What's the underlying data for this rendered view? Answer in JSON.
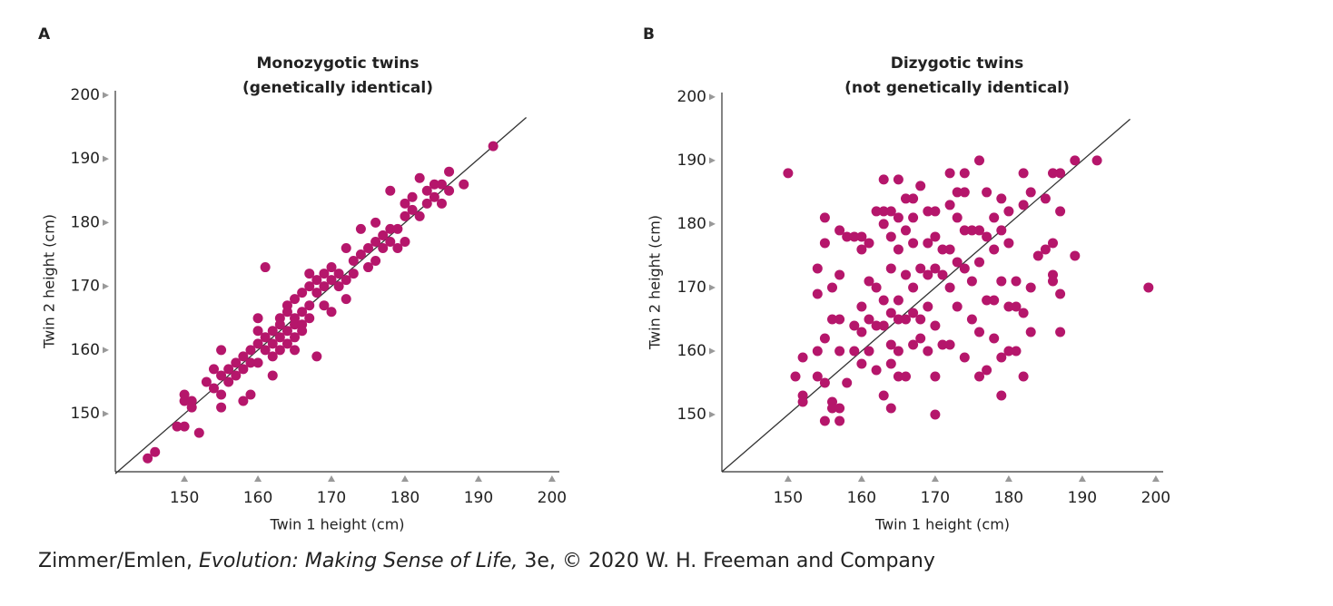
{
  "chart_data": [
    {
      "type": "scatter",
      "panel_label": "A",
      "title": "Monozygotic twins",
      "subtitle": "(genetically identical)",
      "xlabel": "Twin 1 height (cm)",
      "ylabel": "Twin 2 height (cm)",
      "color": "#b5166b",
      "xlim": [
        140.6,
        201
      ],
      "ylim": [
        140.9,
        200.7
      ],
      "xticks": [
        150,
        160,
        170,
        180,
        190,
        200
      ],
      "yticks": [
        150,
        160,
        170,
        180,
        190,
        200
      ],
      "reference_line": {
        "x": [
          140.6,
          196.5
        ],
        "y": [
          140.6,
          196.5
        ]
      },
      "x": [
        145,
        146,
        149,
        150,
        150,
        150,
        151,
        151,
        152,
        153,
        154,
        154,
        155,
        155,
        155,
        155,
        156,
        156,
        157,
        157,
        158,
        158,
        158,
        159,
        159,
        159,
        160,
        160,
        160,
        160,
        161,
        161,
        161,
        162,
        162,
        162,
        162,
        163,
        163,
        163,
        163,
        164,
        164,
        164,
        164,
        165,
        165,
        165,
        165,
        165,
        166,
        166,
        166,
        166,
        167,
        167,
        167,
        167,
        168,
        168,
        168,
        169,
        169,
        169,
        170,
        170,
        170,
        171,
        171,
        172,
        172,
        172,
        173,
        173,
        174,
        174,
        175,
        175,
        176,
        176,
        176,
        177,
        177,
        178,
        178,
        178,
        179,
        179,
        180,
        180,
        180,
        181,
        181,
        182,
        182,
        183,
        183,
        184,
        184,
        185,
        185,
        186,
        186,
        188,
        192
      ],
      "values": [
        143,
        144,
        148,
        148,
        153,
        152,
        152,
        151,
        147,
        155,
        157,
        154,
        156,
        153,
        151,
        160,
        157,
        155,
        156,
        158,
        157,
        159,
        152,
        158,
        160,
        153,
        161,
        163,
        165,
        158,
        160,
        173,
        162,
        161,
        163,
        159,
        156,
        162,
        164,
        165,
        160,
        163,
        166,
        161,
        167,
        164,
        165,
        162,
        168,
        160,
        166,
        164,
        169,
        163,
        167,
        165,
        170,
        172,
        169,
        159,
        171,
        170,
        172,
        167,
        171,
        173,
        166,
        172,
        170,
        171,
        176,
        168,
        174,
        172,
        175,
        179,
        176,
        173,
        177,
        174,
        180,
        178,
        176,
        179,
        185,
        177,
        179,
        176,
        181,
        177,
        183,
        182,
        184,
        181,
        187,
        183,
        185,
        184,
        186,
        186,
        183,
        185,
        188,
        186,
        192
      ]
    },
    {
      "type": "scatter",
      "panel_label": "B",
      "title": "Dizygotic twins",
      "subtitle": "(not genetically identical)",
      "xlabel": "Twin 1 height (cm)",
      "ylabel": "Twin 2 height (cm)",
      "color": "#b5166b",
      "xlim": [
        141,
        201
      ],
      "ylim": [
        141,
        200.7
      ],
      "xticks": [
        150,
        160,
        170,
        180,
        190,
        200
      ],
      "yticks": [
        150,
        160,
        170,
        180,
        190,
        200
      ],
      "reference_line": {
        "x": [
          141,
          196.5
        ],
        "y": [
          141,
          196.5
        ]
      },
      "x": [
        150,
        151,
        152,
        152,
        152,
        154,
        154,
        154,
        154,
        155,
        155,
        155,
        155,
        155,
        156,
        156,
        156,
        156,
        157,
        157,
        157,
        157,
        157,
        157,
        158,
        158,
        159,
        159,
        159,
        160,
        160,
        160,
        160,
        160,
        161,
        161,
        161,
        161,
        162,
        162,
        162,
        162,
        163,
        163,
        163,
        163,
        163,
        163,
        164,
        164,
        164,
        164,
        164,
        164,
        164,
        165,
        165,
        165,
        165,
        165,
        165,
        165,
        166,
        166,
        166,
        166,
        166,
        167,
        167,
        167,
        167,
        167,
        167,
        168,
        168,
        168,
        168,
        169,
        169,
        169,
        169,
        169,
        170,
        170,
        170,
        170,
        170,
        170,
        171,
        171,
        171,
        172,
        172,
        172,
        172,
        172,
        173,
        173,
        173,
        173,
        174,
        174,
        174,
        174,
        174,
        175,
        175,
        175,
        176,
        176,
        176,
        176,
        176,
        177,
        177,
        177,
        177,
        178,
        178,
        178,
        178,
        179,
        179,
        179,
        179,
        179,
        180,
        180,
        180,
        180,
        181,
        181,
        181,
        182,
        182,
        182,
        182,
        183,
        183,
        183,
        184,
        185,
        185,
        186,
        186,
        186,
        186,
        187,
        187,
        187,
        187,
        189,
        189,
        192,
        199
      ],
      "values": [
        188,
        156,
        159,
        153,
        152,
        173,
        169,
        160,
        156,
        181,
        177,
        162,
        155,
        149,
        170,
        165,
        152,
        151,
        179,
        172,
        165,
        160,
        151,
        149,
        178,
        155,
        178,
        164,
        160,
        178,
        176,
        167,
        163,
        158,
        177,
        171,
        165,
        160,
        182,
        170,
        164,
        157,
        187,
        182,
        180,
        168,
        164,
        153,
        182,
        178,
        173,
        166,
        161,
        158,
        151,
        187,
        181,
        176,
        168,
        165,
        160,
        156,
        184,
        179,
        172,
        165,
        156,
        184,
        181,
        177,
        170,
        166,
        161,
        186,
        173,
        165,
        162,
        182,
        177,
        172,
        167,
        160,
        182,
        178,
        173,
        164,
        156,
        150,
        176,
        172,
        161,
        188,
        183,
        176,
        170,
        161,
        185,
        181,
        174,
        167,
        188,
        185,
        179,
        173,
        159,
        179,
        171,
        165,
        190,
        179,
        174,
        163,
        156,
        185,
        178,
        168,
        157,
        181,
        176,
        168,
        162,
        184,
        179,
        171,
        159,
        153,
        182,
        177,
        167,
        160,
        171,
        167,
        160,
        188,
        183,
        166,
        156,
        185,
        170,
        163,
        175,
        184,
        176,
        188,
        177,
        172,
        171,
        188,
        182,
        169,
        163,
        190,
        175,
        190,
        170
      ]
    }
  ],
  "caption": {
    "prefix": "Zimmer/Emlen, ",
    "book": "Evolution: Making Sense of Life,",
    "suffix": " 3e, © 2020 W. H. Freeman and Company"
  }
}
